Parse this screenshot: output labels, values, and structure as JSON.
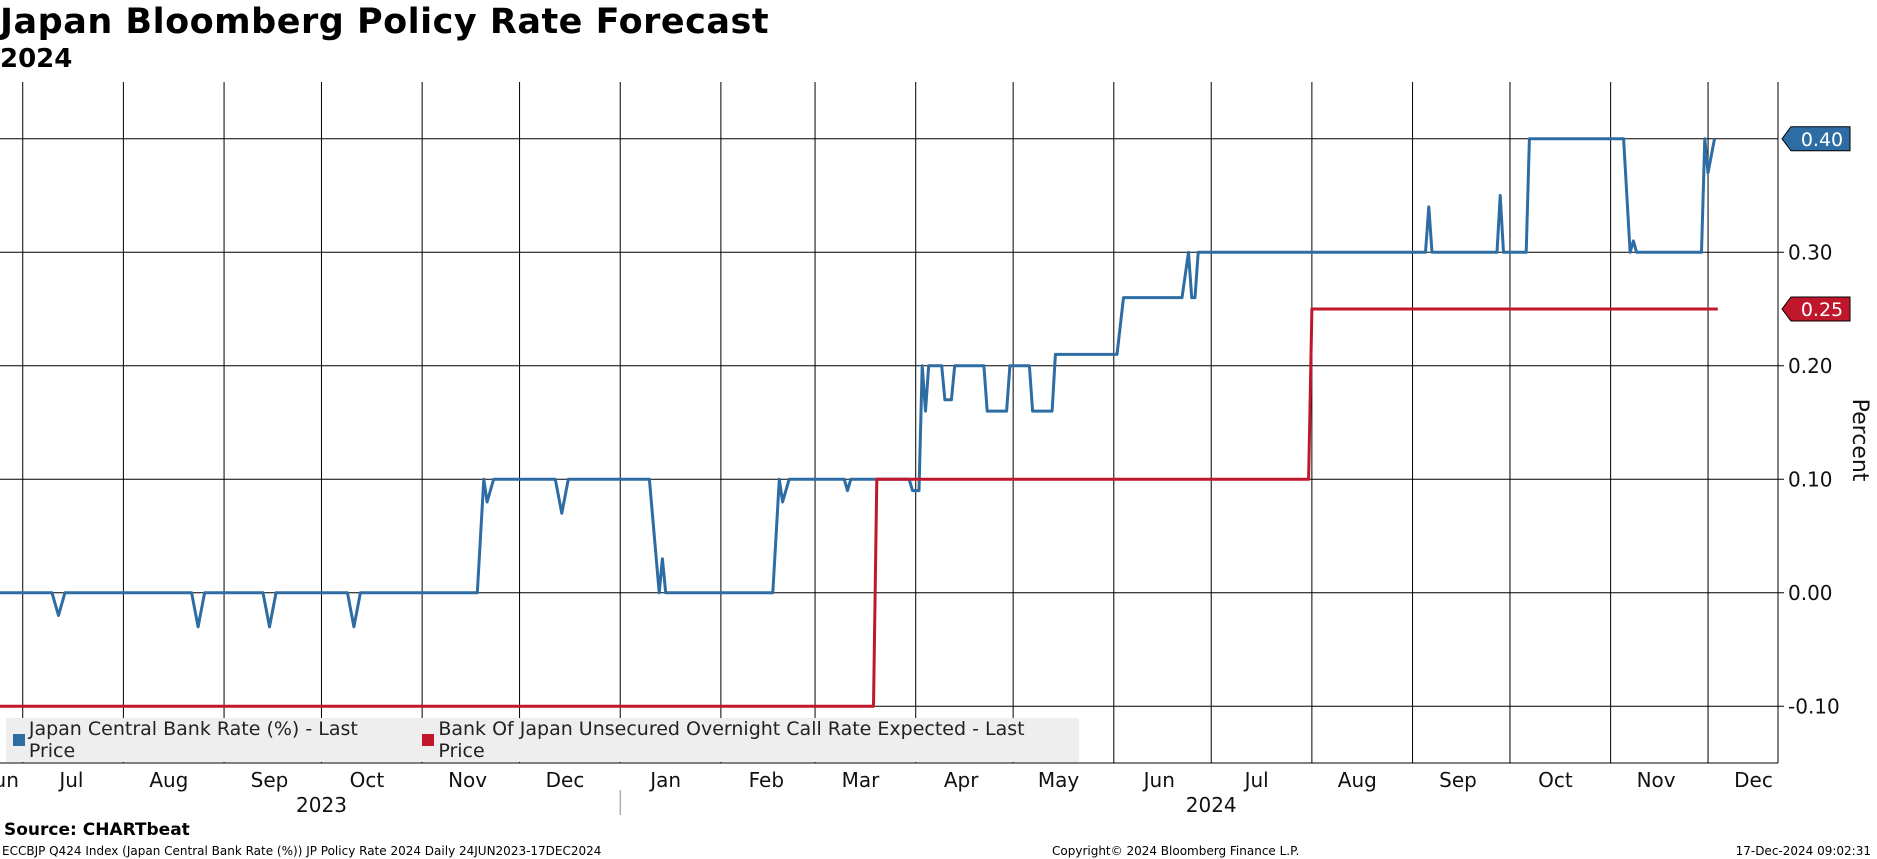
{
  "chart_data": {
    "type": "line",
    "title": "Japan Bloomberg Policy Rate Forecast",
    "subtitle": "2024",
    "ylabel": "Percent",
    "ylim": [
      -0.15,
      0.45
    ],
    "y_ticks": [
      {
        "value": 0.3,
        "label": "0.30"
      },
      {
        "value": 0.2,
        "label": "0.20"
      },
      {
        "value": 0.1,
        "label": "0.10"
      },
      {
        "value": 0.0,
        "label": "0.00"
      },
      {
        "value": -0.1,
        "label": "-0.10"
      }
    ],
    "x_range": [
      "2023-06-24",
      "2024-12-17"
    ],
    "x_ticks": [
      {
        "date": "2023-06-25",
        "label": "Jun"
      },
      {
        "date": "2023-07-16",
        "label": "Jul"
      },
      {
        "date": "2023-08-15",
        "label": "Aug"
      },
      {
        "date": "2023-09-15",
        "label": "Sep"
      },
      {
        "date": "2023-10-15",
        "label": "Oct"
      },
      {
        "date": "2023-11-15",
        "label": "Nov"
      },
      {
        "date": "2023-12-15",
        "label": "Dec"
      },
      {
        "date": "2024-01-15",
        "label": "Jan"
      },
      {
        "date": "2024-02-15",
        "label": "Feb"
      },
      {
        "date": "2024-03-15",
        "label": "Mar"
      },
      {
        "date": "2024-04-15",
        "label": "Apr"
      },
      {
        "date": "2024-05-15",
        "label": "May"
      },
      {
        "date": "2024-06-15",
        "label": "Jun"
      },
      {
        "date": "2024-07-15",
        "label": "Jul"
      },
      {
        "date": "2024-08-15",
        "label": "Aug"
      },
      {
        "date": "2024-09-15",
        "label": "Sep"
      },
      {
        "date": "2024-10-15",
        "label": "Oct"
      },
      {
        "date": "2024-11-15",
        "label": "Nov"
      },
      {
        "date": "2024-12-15",
        "label": "Dec"
      }
    ],
    "x_gridlines": [
      "2023-07-01",
      "2023-08-01",
      "2023-09-01",
      "2023-10-01",
      "2023-11-01",
      "2023-12-01",
      "2024-01-01",
      "2024-02-01",
      "2024-03-01",
      "2024-04-01",
      "2024-05-01",
      "2024-06-01",
      "2024-07-01",
      "2024-08-01",
      "2024-09-01",
      "2024-10-01",
      "2024-11-01",
      "2024-12-01"
    ],
    "year_labels": [
      {
        "label": "2023",
        "date": "2023-10-01"
      },
      {
        "label": "2024",
        "date": "2024-07-01"
      }
    ],
    "year_divider": "2024-01-01",
    "grid": true,
    "legend_position": "bottom-left",
    "series": [
      {
        "name": "Japan Central Bank Rate (%) - Last Price",
        "color": "#2e6da4",
        "last_value_label": "0.40",
        "points": [
          [
            "2023-06-24",
            0.0
          ],
          [
            "2023-07-10",
            0.0
          ],
          [
            "2023-07-12",
            -0.02
          ],
          [
            "2023-07-14",
            0.0
          ],
          [
            "2023-08-22",
            0.0
          ],
          [
            "2023-08-24",
            -0.03
          ],
          [
            "2023-08-26",
            0.0
          ],
          [
            "2023-09-13",
            0.0
          ],
          [
            "2023-09-15",
            -0.03
          ],
          [
            "2023-09-17",
            0.0
          ],
          [
            "2023-10-09",
            0.0
          ],
          [
            "2023-10-11",
            -0.03
          ],
          [
            "2023-10-13",
            0.0
          ],
          [
            "2023-11-18",
            0.0
          ],
          [
            "2023-11-20",
            0.1
          ],
          [
            "2023-11-21",
            0.08
          ],
          [
            "2023-11-23",
            0.1
          ],
          [
            "2023-12-12",
            0.1
          ],
          [
            "2023-12-14",
            0.07
          ],
          [
            "2023-12-16",
            0.1
          ],
          [
            "2024-01-10",
            0.1
          ],
          [
            "2024-01-13",
            0.0
          ],
          [
            "2024-01-14",
            0.03
          ],
          [
            "2024-01-15",
            0.0
          ],
          [
            "2024-02-17",
            0.0
          ],
          [
            "2024-02-19",
            0.1
          ],
          [
            "2024-02-20",
            0.08
          ],
          [
            "2024-02-22",
            0.1
          ],
          [
            "2024-03-10",
            0.1
          ],
          [
            "2024-03-11",
            0.09
          ],
          [
            "2024-03-12",
            0.1
          ],
          [
            "2024-03-30",
            0.1
          ],
          [
            "2024-03-31",
            0.09
          ],
          [
            "2024-04-02",
            0.09
          ],
          [
            "2024-04-03",
            0.2
          ],
          [
            "2024-04-04",
            0.16
          ],
          [
            "2024-04-05",
            0.2
          ],
          [
            "2024-04-09",
            0.2
          ],
          [
            "2024-04-10",
            0.17
          ],
          [
            "2024-04-12",
            0.17
          ],
          [
            "2024-04-13",
            0.2
          ],
          [
            "2024-04-22",
            0.2
          ],
          [
            "2024-04-23",
            0.16
          ],
          [
            "2024-04-29",
            0.16
          ],
          [
            "2024-04-30",
            0.2
          ],
          [
            "2024-05-06",
            0.2
          ],
          [
            "2024-05-07",
            0.16
          ],
          [
            "2024-05-13",
            0.16
          ],
          [
            "2024-05-14",
            0.21
          ],
          [
            "2024-06-02",
            0.21
          ],
          [
            "2024-06-04",
            0.26
          ],
          [
            "2024-06-22",
            0.26
          ],
          [
            "2024-06-24",
            0.3
          ],
          [
            "2024-06-25",
            0.26
          ],
          [
            "2024-06-26",
            0.26
          ],
          [
            "2024-06-27",
            0.3
          ],
          [
            "2024-09-05",
            0.3
          ],
          [
            "2024-09-06",
            0.34
          ],
          [
            "2024-09-07",
            0.3
          ],
          [
            "2024-09-27",
            0.3
          ],
          [
            "2024-09-28",
            0.35
          ],
          [
            "2024-09-29",
            0.3
          ],
          [
            "2024-10-06",
            0.3
          ],
          [
            "2024-10-07",
            0.4
          ],
          [
            "2024-11-05",
            0.4
          ],
          [
            "2024-11-07",
            0.3
          ],
          [
            "2024-11-08",
            0.31
          ],
          [
            "2024-11-09",
            0.3
          ],
          [
            "2024-11-29",
            0.3
          ],
          [
            "2024-11-30",
            0.4
          ],
          [
            "2024-12-01",
            0.37
          ],
          [
            "2024-12-03",
            0.4
          ]
        ]
      },
      {
        "name": "Bank Of Japan Unsecured Overnight Call Rate Expected - Last Price",
        "color": "#c0172d",
        "last_value_label": "0.25",
        "points": [
          [
            "2023-06-24",
            -0.1
          ],
          [
            "2024-03-19",
            -0.1
          ],
          [
            "2024-03-20",
            0.1
          ],
          [
            "2024-07-31",
            0.1
          ],
          [
            "2024-08-01",
            0.25
          ],
          [
            "2024-12-04",
            0.25
          ]
        ]
      }
    ]
  },
  "footer": {
    "source": "Source: CHARTbeat",
    "ticker_info": "ECCBJP Q424 Index (Japan Central Bank Rate (%)) JP Policy Rate 2024  Daily 24JUN2023-17DEC2024",
    "copyright": "Copyright© 2024 Bloomberg Finance L.P.",
    "timestamp": "17-Dec-2024 09:02:31"
  },
  "extra_gridline": {
    "value": 0.4
  }
}
